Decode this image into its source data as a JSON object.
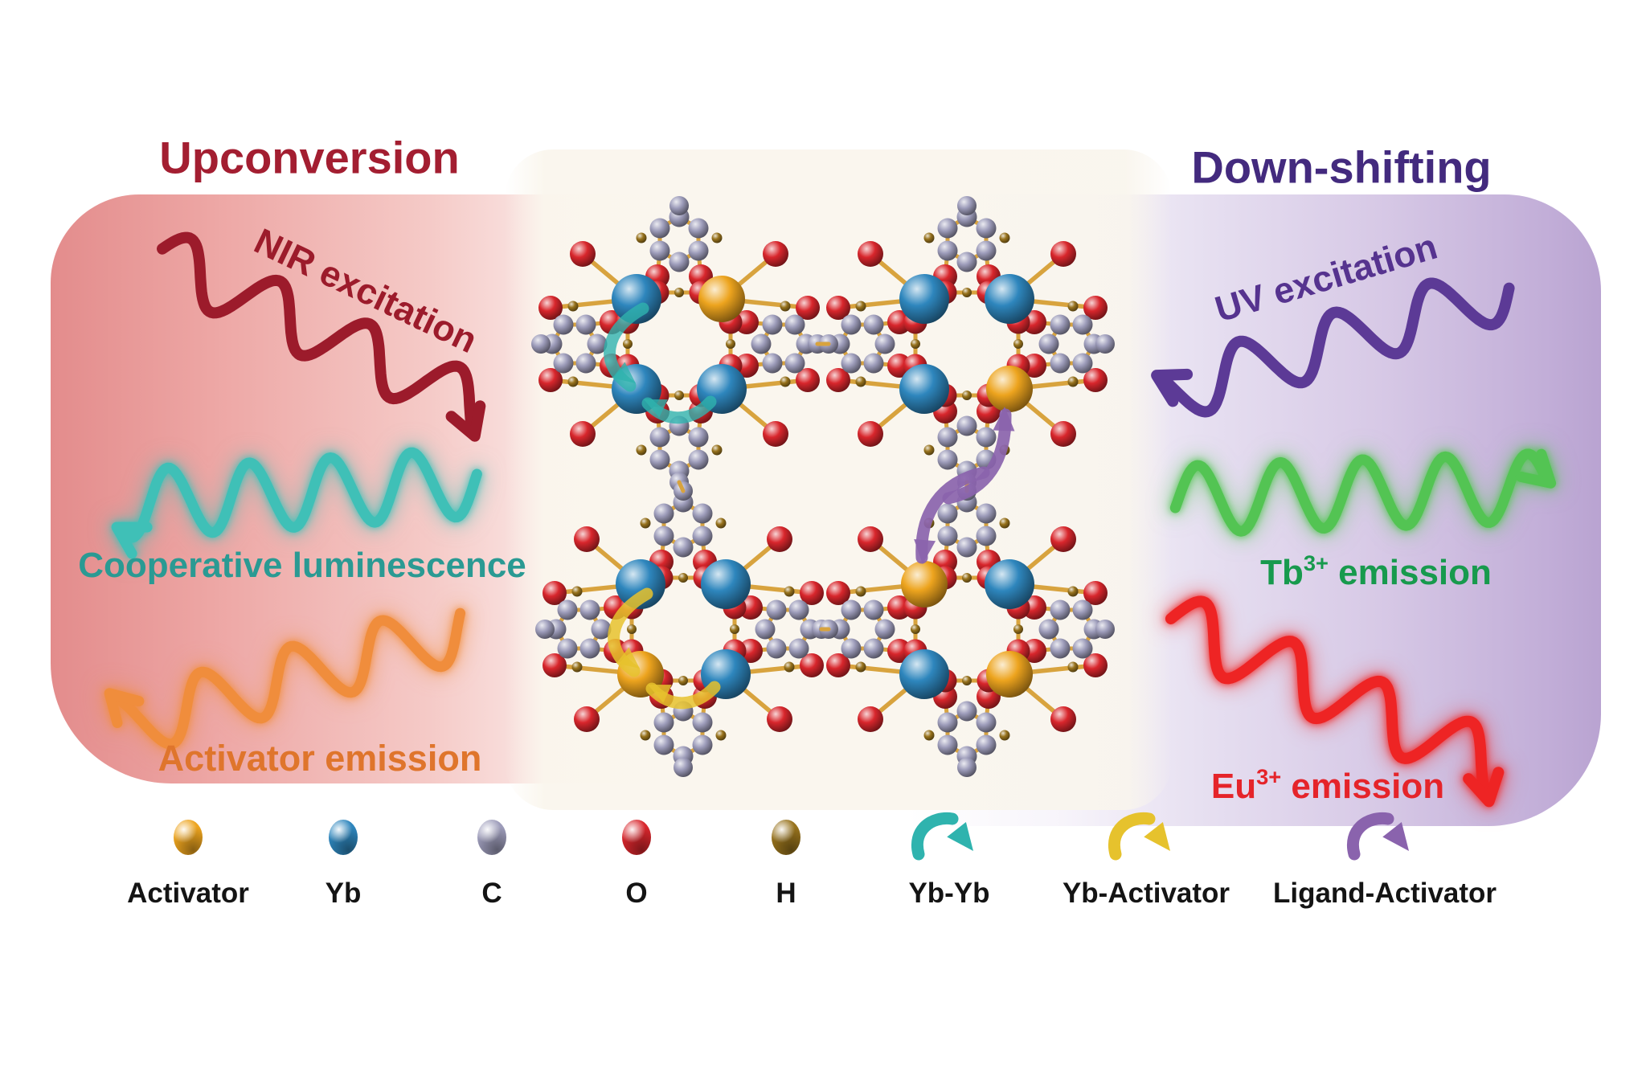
{
  "titles": {
    "left": "Upconversion",
    "right": "Down-shifting"
  },
  "left_panel": {
    "excitation_label": "NIR excitation",
    "emission1_label": "Cooperative luminescence",
    "emission2_label": "Activator emission"
  },
  "right_panel": {
    "excitation_label": "UV excitation",
    "emission1_element": "Tb",
    "emission1_charge": "3+",
    "emission1_suffix": " emission",
    "emission2_element": "Eu",
    "emission2_charge": "3+",
    "emission2_suffix": " emission"
  },
  "legend": {
    "atoms": [
      {
        "name": "Activator",
        "color": "#eda41e"
      },
      {
        "name": "Yb",
        "color": "#2e86bd"
      },
      {
        "name": "C",
        "color": "#9d9cba"
      },
      {
        "name": "O",
        "color": "#d8262c"
      },
      {
        "name": "H",
        "color": "#97721c"
      }
    ],
    "transfers": [
      {
        "name": "Yb-Yb",
        "color": "#2fb3ae"
      },
      {
        "name": "Yb-Activator",
        "color": "#e6c22d"
      },
      {
        "name": "Ligand-Activator",
        "color": "#8a63ad"
      }
    ]
  },
  "colors": {
    "title_left": "#a31e31",
    "title_right": "#432a7e",
    "nir": "#9c1b2b",
    "cooperative_text": "#2a9a93",
    "cooperative_wave": "#3fc0b7",
    "activator_text": "#df752c",
    "activator_wave": "#f08d3c",
    "uv_text": "#56338f",
    "uv_wave": "#5c3a96",
    "tb_text": "#179a4d",
    "tb_wave": "#53c453",
    "eu_text": "#e5242a",
    "eu_wave": "#ee2424",
    "bond": "#d8a33e"
  }
}
